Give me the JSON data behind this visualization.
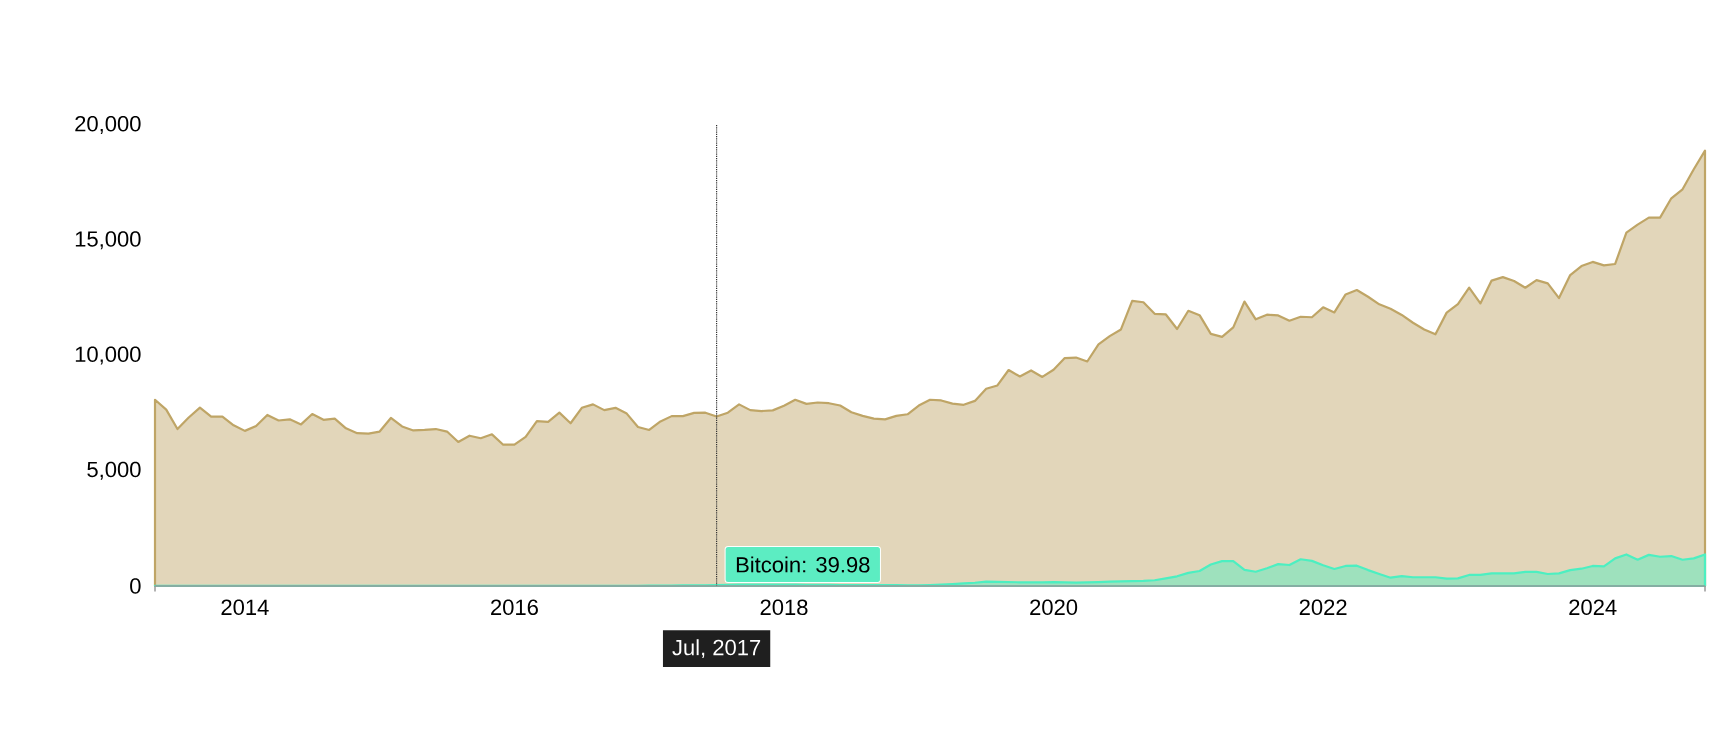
{
  "chart_data": {
    "type": "area",
    "x": [
      "2013-05",
      "2013-06",
      "2013-07",
      "2013-08",
      "2013-09",
      "2013-10",
      "2013-11",
      "2013-12",
      "2014-01",
      "2014-02",
      "2014-03",
      "2014-04",
      "2014-05",
      "2014-06",
      "2014-07",
      "2014-08",
      "2014-09",
      "2014-10",
      "2014-11",
      "2014-12",
      "2015-01",
      "2015-02",
      "2015-03",
      "2015-04",
      "2015-05",
      "2015-06",
      "2015-07",
      "2015-08",
      "2015-09",
      "2015-10",
      "2015-11",
      "2015-12",
      "2016-01",
      "2016-02",
      "2016-03",
      "2016-04",
      "2016-05",
      "2016-06",
      "2016-07",
      "2016-08",
      "2016-09",
      "2016-10",
      "2016-11",
      "2016-12",
      "2017-01",
      "2017-02",
      "2017-03",
      "2017-04",
      "2017-05",
      "2017-06",
      "2017-07",
      "2017-08",
      "2017-09",
      "2017-10",
      "2017-11",
      "2017-12",
      "2018-01",
      "2018-02",
      "2018-03",
      "2018-04",
      "2018-05",
      "2018-06",
      "2018-07",
      "2018-08",
      "2018-09",
      "2018-10",
      "2018-11",
      "2018-12",
      "2019-01",
      "2019-02",
      "2019-03",
      "2019-04",
      "2019-05",
      "2019-06",
      "2019-07",
      "2019-08",
      "2019-09",
      "2019-10",
      "2019-11",
      "2019-12",
      "2020-01",
      "2020-02",
      "2020-03",
      "2020-04",
      "2020-05",
      "2020-06",
      "2020-07",
      "2020-08",
      "2020-09",
      "2020-10",
      "2020-11",
      "2020-12",
      "2021-01",
      "2021-02",
      "2021-03",
      "2021-04",
      "2021-05",
      "2021-06",
      "2021-07",
      "2021-08",
      "2021-09",
      "2021-10",
      "2021-11",
      "2021-12",
      "2022-01",
      "2022-02",
      "2022-03",
      "2022-04",
      "2022-05",
      "2022-06",
      "2022-07",
      "2022-08",
      "2022-09",
      "2022-10",
      "2022-11",
      "2022-12",
      "2023-01",
      "2023-02",
      "2023-03",
      "2023-04",
      "2023-05",
      "2023-06",
      "2023-07",
      "2023-08",
      "2023-09",
      "2023-10",
      "2023-11",
      "2023-12",
      "2024-01",
      "2024-02",
      "2024-03",
      "2024-04",
      "2024-05",
      "2024-06",
      "2024-07",
      "2024-08",
      "2024-09",
      "2024-10",
      "2024-11"
    ],
    "series": [
      {
        "color": "#bfa566",
        "values": [
          8080,
          7650,
          6810,
          7310,
          7740,
          7350,
          7350,
          6970,
          6730,
          6940,
          7420,
          7180,
          7230,
          7010,
          7460,
          7210,
          7260,
          6840,
          6630,
          6610,
          6700,
          7290,
          6920,
          6750,
          6770,
          6810,
          6700,
          6250,
          6520,
          6410,
          6580,
          6130,
          6130,
          6470,
          7150,
          7120,
          7520,
          7060,
          7730,
          7880,
          7630,
          7730,
          7480,
          6900,
          6770,
          7140,
          7370,
          7370,
          7510,
          7520,
          7350,
          7520,
          7880,
          7630,
          7590,
          7620,
          7820,
          8080,
          7900,
          7960,
          7930,
          7830,
          7540,
          7380,
          7260,
          7230,
          7380,
          7450,
          7830,
          8080,
          8050,
          7910,
          7860,
          8030,
          8560,
          8700,
          9370,
          9090,
          9350,
          9070,
          9380,
          9890,
          9910,
          9740,
          10480,
          10840,
          11130,
          12370,
          12310,
          11810,
          11780,
          11150,
          11940,
          11750,
          10940,
          10810,
          11220,
          12340,
          11570,
          11770,
          11740,
          11510,
          11680,
          11660,
          12090,
          11870,
          12650,
          12840,
          12550,
          12220,
          12030,
          11760,
          11420,
          11130,
          10920,
          11860,
          12230,
          12940,
          12260,
          13250,
          13400,
          13230,
          12940,
          13270,
          13130,
          12490,
          13490,
          13880,
          14060,
          13910,
          13970,
          15330,
          15680,
          15980,
          15980,
          16820,
          17210,
          18080,
          18890
        ]
      },
      {
        "color": "#4cefc1",
        "values": [
          10,
          10,
          10,
          10,
          10,
          10,
          10,
          10,
          10,
          10,
          10,
          10,
          10,
          10,
          10,
          10,
          10,
          10,
          10,
          10,
          10,
          10,
          10,
          10,
          10,
          10,
          10,
          10,
          10,
          10,
          10,
          10,
          10,
          10,
          10,
          10,
          10,
          10,
          10,
          10,
          10,
          10,
          10,
          10,
          20,
          20,
          20,
          30,
          30,
          30,
          39.98,
          50,
          60,
          60,
          60,
          60,
          60,
          60,
          50,
          50,
          50,
          40,
          40,
          40,
          40,
          40,
          40,
          30,
          30,
          40,
          60,
          80,
          110,
          140,
          190,
          180,
          170,
          160,
          160,
          155,
          170,
          160,
          150,
          160,
          170,
          190,
          200,
          210,
          220,
          250,
          330,
          420,
          570,
          650,
          930,
          1080,
          1080,
          700,
          620,
          770,
          950,
          910,
          1160,
          1090,
          900,
          740,
          870,
          880,
          690,
          520,
          360,
          430,
          380,
          380,
          380,
          320,
          330,
          480,
          480,
          550,
          550,
          550,
          610,
          610,
          520,
          550,
          690,
          750,
          870,
          850,
          1200,
          1370,
          1140,
          1350,
          1270,
          1300,
          1140,
          1200,
          1370
        ]
      }
    ],
    "xlim": [
      "2013-05",
      "2024-11"
    ],
    "xticks": [
      {
        "value": "2014",
        "label": "2014"
      },
      {
        "value": "2016",
        "label": "2016"
      },
      {
        "value": "2018",
        "label": "2018"
      },
      {
        "value": "2020",
        "label": "2020"
      },
      {
        "value": "2022",
        "label": "2022"
      },
      {
        "value": "2024",
        "label": "2024"
      }
    ],
    "ylim": [
      0,
      20000
    ],
    "yticks": [
      0,
      {
        "value": 5000,
        "label": "5,000"
      },
      {
        "value": 10000,
        "label": "10,000"
      },
      {
        "value": 15000,
        "label": "15,000"
      },
      {
        "value": 20000,
        "label": "20,000"
      }
    ],
    "ref_lines": [
      {
        "axis": "x",
        "value": "2017-07",
        "label": "Jul, 2017",
        "line_style": "dotted",
        "color": "#333333"
      }
    ],
    "annotations": [
      {
        "text": "Bitcoin: 39.98",
        "x": "2017-07",
        "y": 39.98
      }
    ],
    "grid": false,
    "marker": "none",
    "line_style": "solid"
  }
}
